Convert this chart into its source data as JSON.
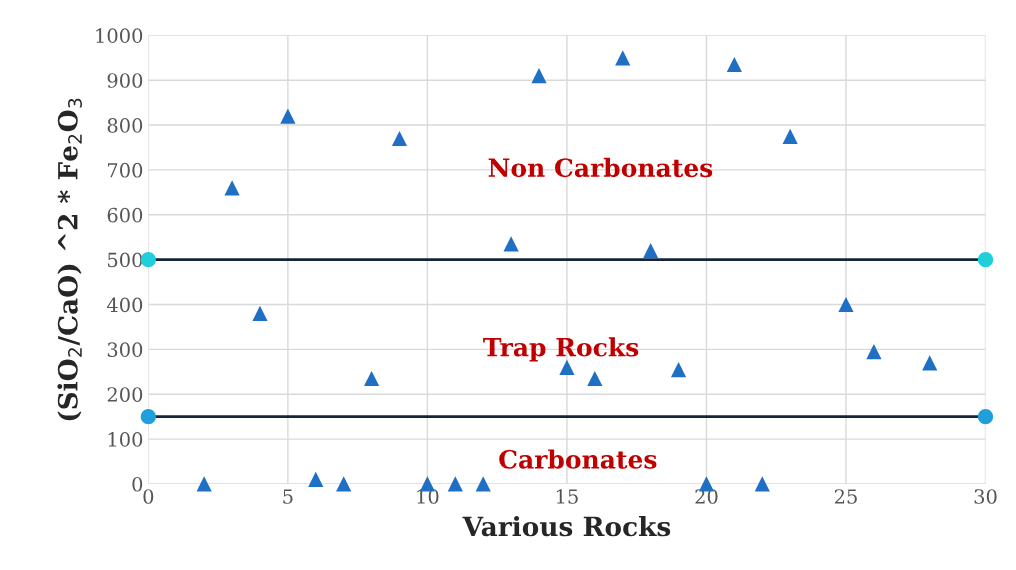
{
  "chart_data": {
    "type": "scatter",
    "xlabel": "Various Rocks",
    "ylabel": "(SiO$_{2}$/CaO) ^2 * Fe$_{2}$O$_{3}$",
    "xlim": [
      0,
      30
    ],
    "xticks": [
      0,
      5,
      10,
      15,
      20,
      25,
      30
    ],
    "ylim": [
      0,
      1000
    ],
    "yticks": [
      0,
      100,
      200,
      300,
      400,
      500,
      600,
      700,
      800,
      900,
      1000
    ],
    "grid": true,
    "series": [
      {
        "color": "#1f6fc5",
        "marker": "triangle",
        "x": [
          2,
          3,
          4,
          5,
          6,
          7,
          8,
          9,
          10,
          11,
          12,
          13,
          14,
          15,
          16,
          17,
          18,
          19,
          20,
          21,
          22,
          23,
          25,
          26,
          28
        ],
        "values": [
          0,
          660,
          380,
          820,
          10,
          0,
          235,
          770,
          0,
          0,
          0,
          535,
          910,
          260,
          235,
          950,
          520,
          255,
          0,
          935,
          0,
          775,
          400,
          295,
          270
        ]
      },
      {
        "color": "#1fcfdc",
        "marker": "circle",
        "x": [
          0,
          30
        ],
        "values": [
          500,
          500
        ]
      },
      {
        "color": "#1fa0dc",
        "marker": "circle",
        "x": [
          0,
          30
        ],
        "values": [
          150,
          150
        ]
      }
    ],
    "ref_lines": [
      {
        "axis": "y",
        "value": 500,
        "color": "#14253a"
      },
      {
        "axis": "y",
        "value": 150,
        "color": "#14253a"
      }
    ],
    "annotations": [
      "Non Carbonates",
      "Trap Rocks",
      "Carbonates"
    ]
  }
}
